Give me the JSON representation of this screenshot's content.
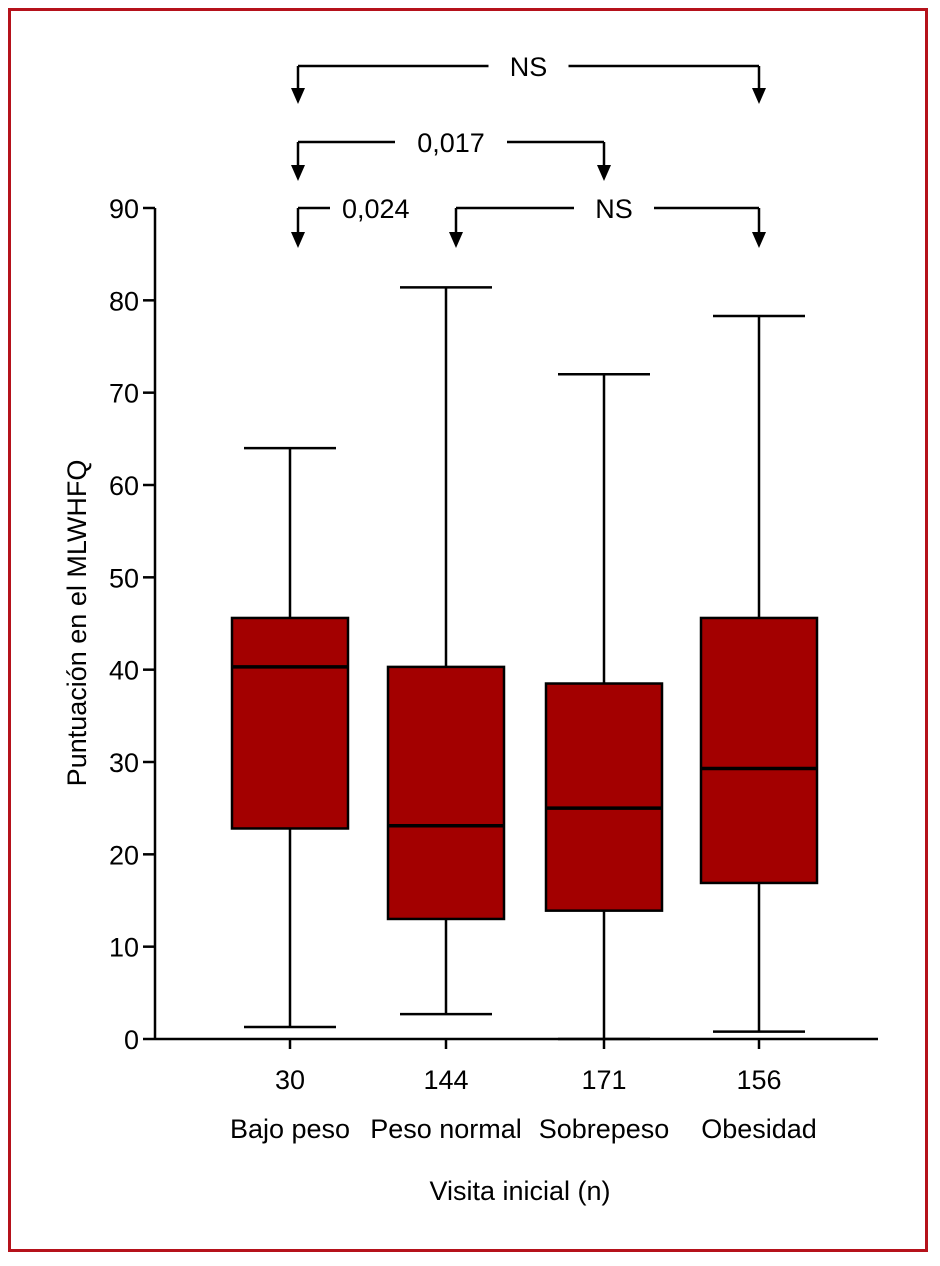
{
  "chart_data": {
    "type": "boxplot",
    "title": "",
    "xlabel": "Visita inicial (n)",
    "ylabel": "Puntuación en el MLWHFQ",
    "ylim": [
      0,
      90
    ],
    "yticks": [
      0,
      10,
      20,
      30,
      40,
      50,
      60,
      70,
      80,
      90
    ],
    "categories": [
      {
        "n": "30",
        "label": "Bajo peso"
      },
      {
        "n": "144",
        "label": "Peso normal"
      },
      {
        "n": "171",
        "label": "Sobrepeso"
      },
      {
        "n": "156",
        "label": "Obesidad"
      }
    ],
    "boxes": [
      {
        "min": 1.3,
        "q1": 22.8,
        "median": 40.3,
        "q3": 45.6,
        "max": 64
      },
      {
        "min": 2.7,
        "q1": 13.0,
        "median": 23.1,
        "q3": 40.3,
        "max": 81.4
      },
      {
        "min": 0,
        "q1": 13.9,
        "median": 25.0,
        "q3": 38.5,
        "max": 72
      },
      {
        "min": 0.8,
        "q1": 16.9,
        "median": 29.3,
        "q3": 45.6,
        "max": 78.3
      }
    ],
    "comparisons": [
      {
        "from": 0,
        "to": 3,
        "label": "NS"
      },
      {
        "from": 0,
        "to": 2,
        "label": "0,017"
      },
      {
        "from": 0,
        "to": 1,
        "label": "0,024"
      },
      {
        "from": 1,
        "to": 3,
        "label": "NS"
      }
    ],
    "box_color": "#a30000",
    "border_color": "#b5121b"
  }
}
